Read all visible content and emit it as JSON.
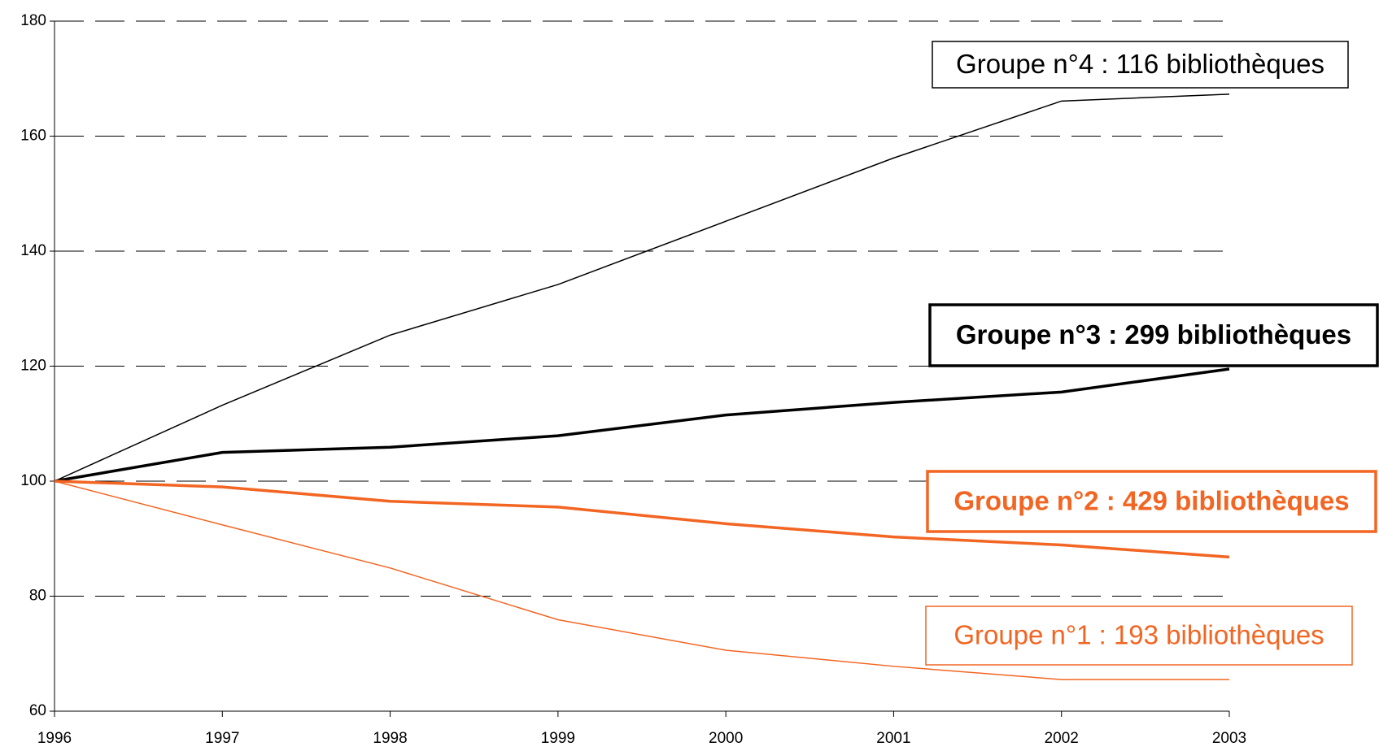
{
  "chart_data": {
    "type": "line",
    "x": [
      1996,
      1997,
      1998,
      1999,
      2000,
      2001,
      2002,
      2003
    ],
    "xlim": [
      1996,
      2003
    ],
    "xticks": [
      1996,
      1997,
      1998,
      1999,
      2000,
      2001,
      2002,
      2003
    ],
    "ylim": [
      60,
      180
    ],
    "yticks": [
      60,
      80,
      100,
      120,
      140,
      160,
      180
    ],
    "grid": true,
    "series": [
      {
        "name": "Groupe n°4 : 116 bibliothèques",
        "color": "#000000",
        "width": 1.5,
        "bold": false,
        "values": [
          100,
          113.2,
          125.4,
          134.2,
          145.2,
          156.2,
          166.1,
          167.3
        ]
      },
      {
        "name": "Groupe n°3 : 299 bibliothèques",
        "color": "#000000",
        "width": 3.5,
        "bold": true,
        "values": [
          100,
          105,
          105.9,
          107.9,
          111.5,
          113.7,
          115.5,
          119.5
        ]
      },
      {
        "name": "Groupe n°2 : 429 bibliothèques",
        "color": "#f26522",
        "width": 3.5,
        "bold": true,
        "values": [
          100,
          99,
          96.5,
          95.5,
          92.6,
          90.3,
          88.9,
          86.8
        ]
      },
      {
        "name": "Groupe n°1 : 193 bibliothèques",
        "color": "#f26522",
        "width": 1.5,
        "bold": false,
        "values": [
          100,
          92.4,
          84.9,
          75.9,
          70.6,
          67.8,
          65.5,
          65.5
        ]
      }
    ]
  }
}
